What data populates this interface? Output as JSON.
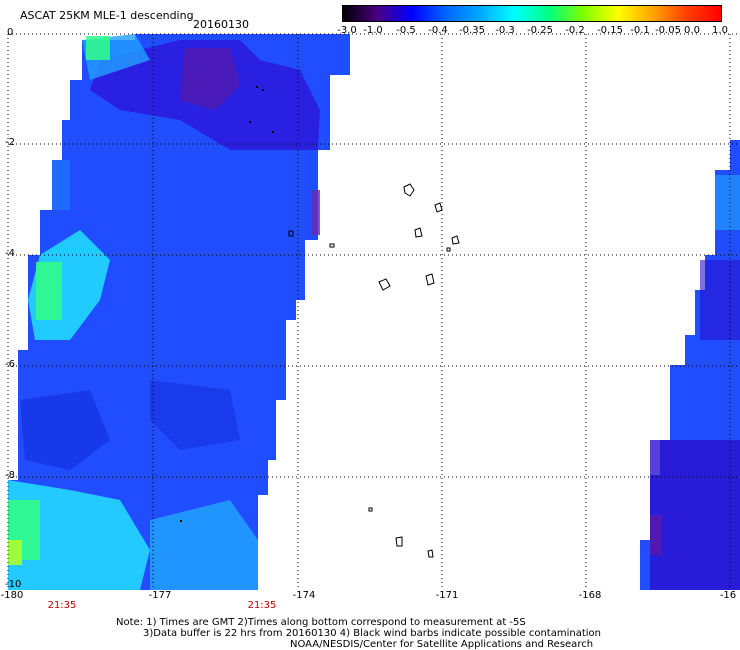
{
  "header": {
    "title": "ASCAT 25KM MLE-1 descending",
    "date": "20160130"
  },
  "colorbar": {
    "labels": [
      "-3.0",
      "-1.0",
      "-0.5",
      "-0.4",
      "-0.35",
      "-0.3",
      "-0.25",
      "-0.2",
      "-0.15",
      "-0.1",
      "-0.05",
      "0.0",
      "1.0"
    ],
    "colors": [
      "#000000",
      "#4b0082",
      "#0000ff",
      "#0066ff",
      "#00aaff",
      "#00ffff",
      "#00ff80",
      "#80ff00",
      "#ffff00",
      "#ffa500",
      "#ff4000",
      "#ff0000"
    ]
  },
  "axes": {
    "lat_labels": [
      "0",
      "-2",
      "-4",
      "-6",
      "-8",
      "-10"
    ],
    "lon_labels": [
      "-180",
      "-177",
      "-174",
      "-171",
      "-168",
      "-16"
    ]
  },
  "times": [
    "21:35",
    "21:35"
  ],
  "notes": {
    "line1": "Note: 1) Times are GMT 2)Times along bottom correspond to measurement at -5S",
    "line2": "3)Data buffer is 22 hrs from 20160130 4) Black wind barbs indicate possible contamination",
    "line3": "NOAA/NESDIS/Center for Satellite Applications and Research"
  }
}
